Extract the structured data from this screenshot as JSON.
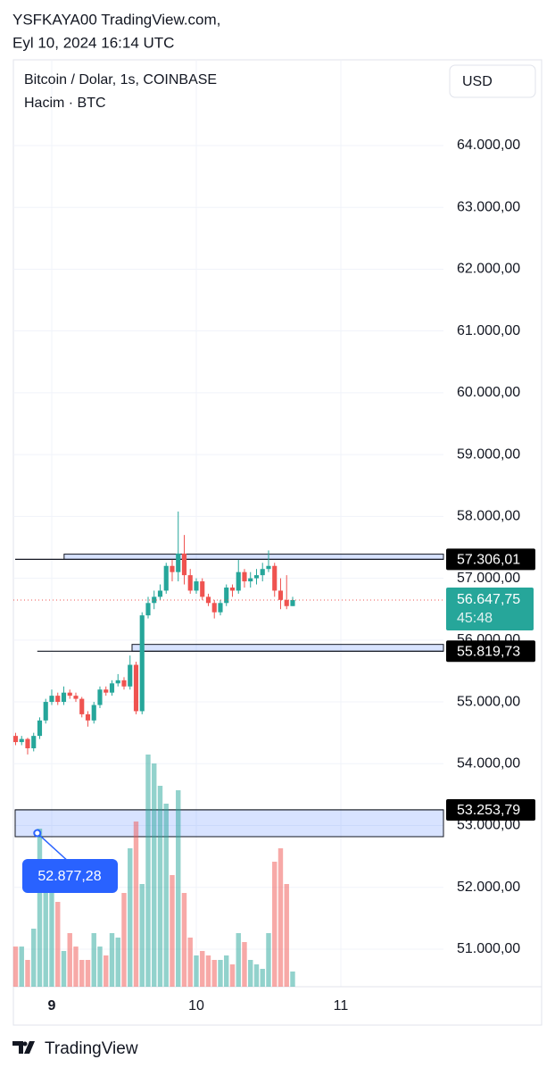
{
  "header": {
    "author": "YSFKAYA00 TradingView.com,",
    "date": "Eyl 10, 2024 16:14 UTC"
  },
  "footer": {
    "brand": "TradingView"
  },
  "chart_data": {
    "type": "candlestick",
    "title": "Bitcoin / Dolar, 1s, COINBASE",
    "subtitle": "Hacim · BTC",
    "currency": "USD",
    "x": [
      8.75,
      8.7917,
      8.8333,
      8.875,
      8.9167,
      8.9583,
      9.0,
      9.0417,
      9.0833,
      9.125,
      9.1667,
      9.2083,
      9.25,
      9.2917,
      9.3333,
      9.375,
      9.4167,
      9.4583,
      9.5,
      9.5417,
      9.5833,
      9.625,
      9.6667,
      9.7083,
      9.75,
      9.7917,
      9.8333,
      9.875,
      9.9167,
      9.9583,
      10.0,
      10.0417,
      10.0833,
      10.125,
      10.1667,
      10.2083,
      10.25,
      10.2917,
      10.3333,
      10.375,
      10.4167,
      10.4583,
      10.5,
      10.5417,
      10.5833,
      10.625,
      10.6667
    ],
    "open": [
      54450,
      54350,
      54400,
      54250,
      54450,
      54700,
      55000,
      55100,
      55000,
      55150,
      55100,
      55050,
      54800,
      54700,
      54950,
      55200,
      55150,
      55300,
      55350,
      55250,
      55600,
      54850,
      56400,
      56600,
      56700,
      56800,
      57200,
      57100,
      57400,
      57050,
      56800,
      56950,
      56700,
      56600,
      56450,
      56600,
      56850,
      56800,
      57100,
      56950,
      57000,
      57050,
      57150,
      57200,
      56800,
      56650,
      56550
    ],
    "high": [
      54500,
      54450,
      54420,
      54500,
      54750,
      55050,
      55200,
      55150,
      55250,
      55200,
      55150,
      55080,
      54850,
      55000,
      55250,
      55250,
      55350,
      55450,
      55400,
      55750,
      55650,
      56450,
      56700,
      56800,
      56900,
      57250,
      57300,
      58080,
      57700,
      57150,
      57000,
      57000,
      56750,
      56650,
      56650,
      56900,
      56900,
      57300,
      57150,
      57100,
      57150,
      57250,
      57450,
      57250,
      57000,
      57050,
      56700
    ],
    "low": [
      54300,
      54300,
      54150,
      54200,
      54400,
      54650,
      54950,
      54950,
      54950,
      55050,
      55000,
      54750,
      54600,
      54650,
      54900,
      55100,
      55100,
      55250,
      55200,
      55200,
      54800,
      54800,
      56350,
      56500,
      56650,
      56750,
      56950,
      56950,
      56900,
      56750,
      56750,
      56650,
      56550,
      56350,
      56400,
      56550,
      56700,
      56750,
      56850,
      56850,
      56900,
      56950,
      57100,
      56700,
      56500,
      56500,
      56550
    ],
    "close": [
      54350,
      54400,
      54250,
      54450,
      54700,
      55000,
      55100,
      55000,
      55150,
      55100,
      55050,
      54800,
      54700,
      54950,
      55200,
      55150,
      55300,
      55350,
      55250,
      55600,
      54850,
      56400,
      56600,
      56700,
      56800,
      57200,
      57100,
      57400,
      57050,
      56800,
      56950,
      56700,
      56600,
      56450,
      56600,
      56850,
      56800,
      57100,
      56950,
      57000,
      57050,
      57150,
      57200,
      56800,
      56650,
      56550,
      56647.75
    ],
    "volume": [
      45,
      45,
      30,
      65,
      177,
      115,
      105,
      95,
      40,
      60,
      45,
      30,
      30,
      60,
      45,
      35,
      60,
      55,
      105,
      155,
      185,
      115,
      260,
      250,
      225,
      205,
      125,
      220,
      105,
      55,
      35,
      40,
      35,
      30,
      30,
      35,
      25,
      60,
      50,
      30,
      25,
      20,
      60,
      140,
      155,
      115,
      17
    ],
    "up_color": "#26a69a",
    "down_color": "#ef5350",
    "xlim": [
      8.747,
      11.71
    ],
    "xticks": [
      9,
      10,
      11
    ],
    "ylim": [
      50393,
      65372
    ],
    "yticks": [
      {
        "value": 51000,
        "label": "51.000,00"
      },
      {
        "value": 52000,
        "label": "52.000,00"
      },
      {
        "value": 53000,
        "label": "53.000,00"
      },
      {
        "value": 54000,
        "label": "54.000,00"
      },
      {
        "value": 55000,
        "label": "55.000,00"
      },
      {
        "value": 56000,
        "label": "56.000,00"
      },
      {
        "value": 57000,
        "label": "57.000,00"
      },
      {
        "value": 58000,
        "label": "58.000,00"
      },
      {
        "value": 59000,
        "label": "59.000,00"
      },
      {
        "value": 60000,
        "label": "60.000,00"
      },
      {
        "value": 61000,
        "label": "61.000,00"
      },
      {
        "value": 62000,
        "label": "62.000,00"
      },
      {
        "value": 63000,
        "label": "63.000,00"
      },
      {
        "value": 64000,
        "label": "64.000,00"
      }
    ],
    "grid": true,
    "levels": [
      {
        "value": 57306.01,
        "label": "57.306,01",
        "band": [
          57306.01,
          57390
        ],
        "from_x": 8.747,
        "band_from_x": 9.0855
      },
      {
        "value": 55819.73,
        "label": "55.819,73",
        "band": [
          55819.73,
          55930
        ],
        "from_x": 8.9,
        "band_from_x": 9.5556
      },
      {
        "value": 53253.79,
        "label": "53.253,79",
        "band": [
          52820,
          53253.79
        ],
        "from_x": 8.747,
        "band_from_x": 8.747
      }
    ],
    "last_price": {
      "value": 56647.75,
      "label": "56.647,75",
      "countdown": "45:48"
    },
    "callout": {
      "x": 8.9,
      "value": 52877.28,
      "label": "52.877,28"
    }
  }
}
